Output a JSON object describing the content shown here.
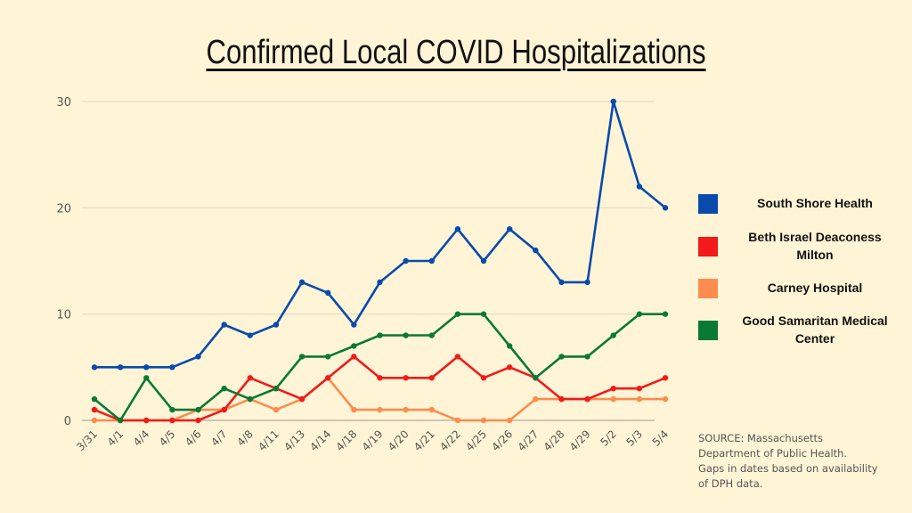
{
  "chart_data": {
    "type": "line",
    "title": "Confirmed Local COVID Hospitalizations",
    "xlabel": "",
    "ylabel": "",
    "ylim": [
      0,
      30
    ],
    "yticks": [
      0,
      10,
      20,
      30
    ],
    "grid": true,
    "legend_position": "right",
    "categories": [
      "3/31",
      "4/1",
      "4/4",
      "4/5",
      "4/6",
      "4/7",
      "4/8",
      "4/11",
      "4/13",
      "4/14",
      "4/18",
      "4/19",
      "4/20",
      "4/21",
      "4/22",
      "4/25",
      "4/26",
      "4/27",
      "4/28",
      "4/29",
      "5/2",
      "5/3",
      "5/4"
    ],
    "series": [
      {
        "name": "South Shore Health",
        "color": "#0a4aad",
        "values": [
          5,
          5,
          5,
          5,
          6,
          9,
          8,
          9,
          13,
          12,
          9,
          13,
          15,
          15,
          18,
          15,
          18,
          16,
          13,
          13,
          30,
          22,
          20
        ]
      },
      {
        "name": "Beth Israel Deaconess Milton",
        "color": "#f21a1a",
        "values": [
          1,
          0,
          0,
          0,
          0,
          1,
          4,
          3,
          2,
          4,
          6,
          4,
          4,
          4,
          6,
          4,
          5,
          4,
          2,
          2,
          3,
          3,
          4
        ]
      },
      {
        "name": "Carney Hospital",
        "color": "#fd8c4e",
        "values": [
          0,
          0,
          0,
          0,
          1,
          1,
          2,
          1,
          2,
          4,
          1,
          1,
          1,
          1,
          0,
          0,
          0,
          2,
          2,
          2,
          2,
          2,
          2
        ]
      },
      {
        "name": "Good Samaritan Medical Center",
        "color": "#087a33",
        "values": [
          2,
          0,
          4,
          1,
          1,
          3,
          2,
          3,
          6,
          6,
          7,
          8,
          8,
          8,
          10,
          10,
          7,
          4,
          6,
          6,
          8,
          10,
          10
        ]
      }
    ]
  },
  "legend": [
    {
      "label_line1": "South Shore Health",
      "label_line2": ""
    },
    {
      "label_line1": "Beth Israel Deaconess",
      "label_line2": "Milton"
    },
    {
      "label_line1": "Carney Hospital",
      "label_line2": ""
    },
    {
      "label_line1": "Good Samaritan Medical",
      "label_line2": "Center"
    }
  ],
  "source": {
    "line1": "SOURCE: Massachusetts",
    "line2": "Department of Public Health.",
    "line3": "Gaps in dates based on availability",
    "line4": "of DPH data."
  },
  "colors": {
    "background": "#fff5d6",
    "grid": "#e6dcc0",
    "axis": "#cfc7b0",
    "tick_text": "#555555"
  }
}
